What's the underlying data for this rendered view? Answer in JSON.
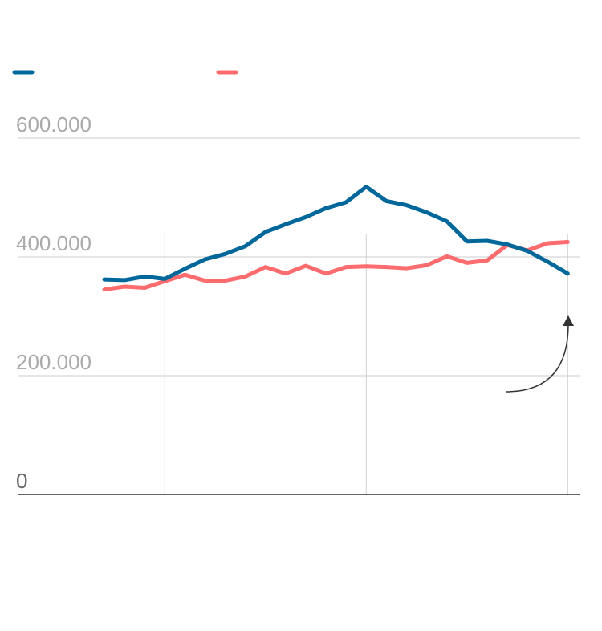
{
  "chart_data": {
    "type": "line",
    "x": [
      0,
      1,
      2,
      3,
      4,
      5,
      6,
      7,
      8,
      9,
      10,
      11,
      12,
      13,
      14,
      15,
      16,
      17,
      18,
      19,
      20,
      21,
      22,
      23
    ],
    "ylim": [
      0,
      600000
    ],
    "y_ticks": [
      0,
      200000,
      400000,
      600000
    ],
    "y_tick_labels": [
      "0",
      "200.000",
      "400.000",
      "600.000"
    ],
    "x_gridlines_at": [
      3,
      13,
      23
    ],
    "grid": true,
    "legend": "top-left",
    "series": [
      {
        "color": "#00679b",
        "values": [
          362000,
          361000,
          367000,
          363000,
          380000,
          396000,
          405000,
          418000,
          442000,
          455000,
          467000,
          482000,
          492000,
          518000,
          494000,
          487000,
          475000,
          460000,
          426000,
          427000,
          421000,
          410000,
          392000,
          372000
        ]
      },
      {
        "color": "#fc6c6e",
        "values": [
          345000,
          350000,
          348000,
          359000,
          370000,
          360000,
          360000,
          367000,
          383000,
          372000,
          385000,
          372000,
          383000,
          384000,
          383000,
          381000,
          386000,
          401000,
          390000,
          394000,
          420000,
          411000,
          423000,
          425000
        ]
      }
    ]
  }
}
